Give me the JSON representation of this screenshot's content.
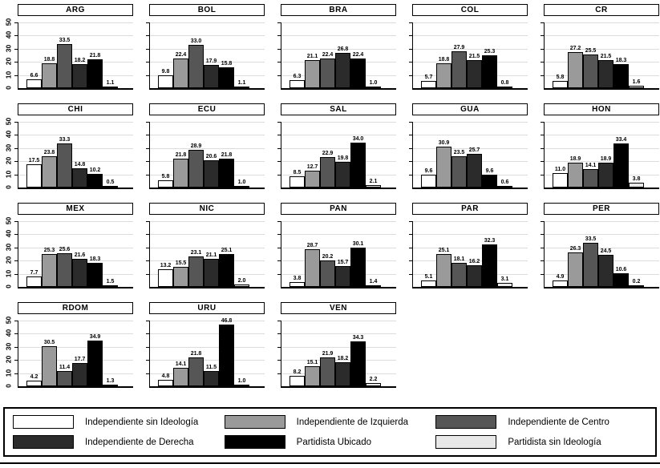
{
  "chart_data": {
    "type": "bar",
    "small_multiples": true,
    "title": "",
    "xlabel": "",
    "ylabel": "",
    "ylim": [
      0,
      50
    ],
    "yticks": [
      0,
      10,
      20,
      30,
      40,
      50
    ],
    "grid": true,
    "value_labels": true,
    "panels_per_row": 5,
    "categories": [
      "Independiente sin Ideología",
      "Independiente de Izquierda",
      "Independiente de Centro",
      "Independiente de Derecha",
      "Partidista Ubicado",
      "Partidista sin Ideología"
    ],
    "colors": [
      "#ffffff",
      "#9a9a9a",
      "#565656",
      "#2b2b2b",
      "#000000",
      "#e8e8e8"
    ],
    "panels": [
      {
        "code": "ARG",
        "values": [
          6.6,
          18.8,
          33.5,
          18.2,
          21.8,
          1.1
        ]
      },
      {
        "code": "BOL",
        "values": [
          9.8,
          22.4,
          33.0,
          17.9,
          15.8,
          1.1
        ]
      },
      {
        "code": "BRA",
        "values": [
          6.3,
          21.1,
          22.4,
          26.8,
          22.4,
          1.0
        ]
      },
      {
        "code": "COL",
        "values": [
          5.7,
          18.8,
          27.9,
          21.5,
          25.3,
          0.8
        ]
      },
      {
        "code": "CR",
        "values": [
          5.8,
          27.2,
          25.5,
          21.5,
          18.3,
          1.6
        ]
      },
      {
        "code": "CHI",
        "values": [
          17.5,
          23.8,
          33.3,
          14.8,
          10.2,
          0.5
        ]
      },
      {
        "code": "ECU",
        "values": [
          5.8,
          21.8,
          28.9,
          20.6,
          21.8,
          1.0
        ]
      },
      {
        "code": "SAL",
        "values": [
          8.5,
          12.7,
          22.9,
          19.8,
          34.0,
          2.1
        ]
      },
      {
        "code": "GUA",
        "values": [
          9.6,
          30.9,
          23.5,
          25.7,
          9.6,
          0.6
        ]
      },
      {
        "code": "HON",
        "values": [
          11.0,
          18.9,
          14.1,
          18.9,
          33.4,
          3.8
        ]
      },
      {
        "code": "MEX",
        "values": [
          7.7,
          25.3,
          25.6,
          21.6,
          18.3,
          1.5
        ]
      },
      {
        "code": "NIC",
        "values": [
          13.2,
          15.5,
          23.1,
          21.1,
          25.1,
          2.0
        ]
      },
      {
        "code": "PAN",
        "values": [
          3.8,
          28.7,
          20.2,
          15.7,
          30.1,
          1.4
        ]
      },
      {
        "code": "PAR",
        "values": [
          5.1,
          25.1,
          18.1,
          16.2,
          32.3,
          3.1
        ]
      },
      {
        "code": "PER",
        "values": [
          4.9,
          26.3,
          33.5,
          24.5,
          10.6,
          0.2
        ]
      },
      {
        "code": "RDOM",
        "values": [
          4.2,
          30.5,
          11.4,
          17.7,
          34.9,
          1.3
        ]
      },
      {
        "code": "URU",
        "values": [
          4.8,
          14.1,
          21.8,
          11.5,
          46.8,
          1.0
        ]
      },
      {
        "code": "VEN",
        "values": [
          8.2,
          15.1,
          21.9,
          18.2,
          34.3,
          2.2
        ]
      }
    ]
  },
  "legend": {
    "items": [
      {
        "label": "Independiente sin Ideología",
        "color": "#ffffff"
      },
      {
        "label": "Independiente de Izquierda",
        "color": "#9a9a9a"
      },
      {
        "label": "Independiente de Centro",
        "color": "#565656"
      },
      {
        "label": "Independiente de Derecha",
        "color": "#2b2b2b"
      },
      {
        "label": "Partidista Ubicado",
        "color": "#000000"
      },
      {
        "label": "Partidista sin Ideología",
        "color": "#e8e8e8"
      }
    ]
  }
}
